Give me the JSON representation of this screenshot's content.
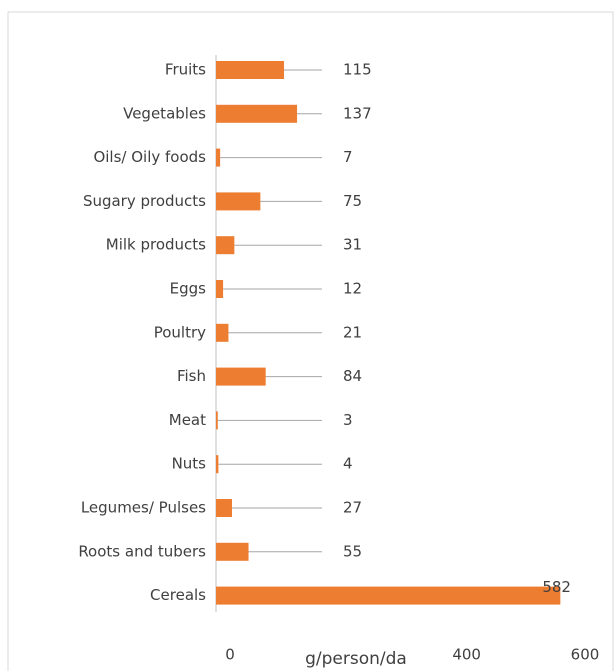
{
  "chart_data": {
    "type": "bar",
    "orientation": "horizontal",
    "categories": [
      "Fruits",
      "Vegetables",
      "Oils/ Oily foods",
      "Sugary products",
      "Milk products",
      "Eggs",
      "Poultry",
      "Fish",
      "Meat",
      "Nuts",
      "Legumes/ Pulses",
      "Roots and tubers",
      "Cereals"
    ],
    "values": [
      115,
      137,
      7,
      75,
      31,
      12,
      21,
      84,
      3,
      4,
      27,
      55,
      582
    ],
    "color": "#ed7d31",
    "xlim": [
      0,
      600
    ],
    "xticks": [
      0,
      400,
      600
    ],
    "x_label": "g/person/da"
  }
}
